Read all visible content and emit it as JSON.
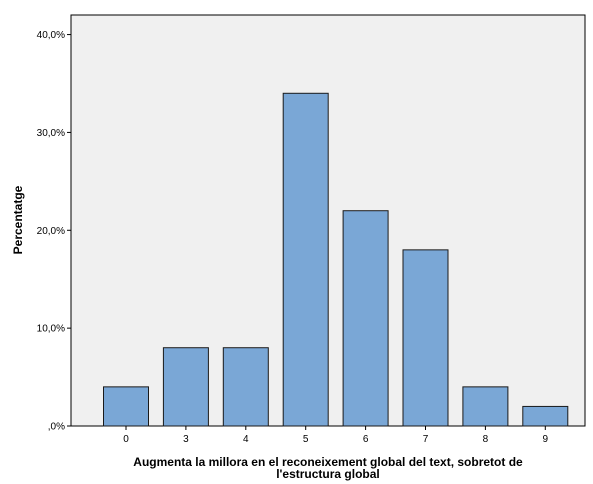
{
  "chart_data": {
    "type": "bar",
    "title": "",
    "xlabel_lines": [
      "Augmenta la millora en el reconeixement global del text, sobretot de",
      "l'estructura global"
    ],
    "ylabel": "Percentatge",
    "categories": [
      "0",
      "3",
      "4",
      "5",
      "6",
      "7",
      "8",
      "9"
    ],
    "values": [
      4,
      8,
      8,
      34,
      22,
      18,
      4,
      2
    ],
    "ylim": [
      0,
      42
    ],
    "yticks": [
      0,
      10,
      20,
      30,
      40
    ],
    "ytick_labels": [
      ",0%",
      "10,0%",
      "20,0%",
      "30,0%",
      "40,0%"
    ],
    "grid": false,
    "legend": "none",
    "colors": {
      "bar_fill": "#7aa7d6",
      "bar_stroke": "#1a1a1a",
      "plot_background": "#f0f0f0",
      "axis": "#000000"
    }
  }
}
